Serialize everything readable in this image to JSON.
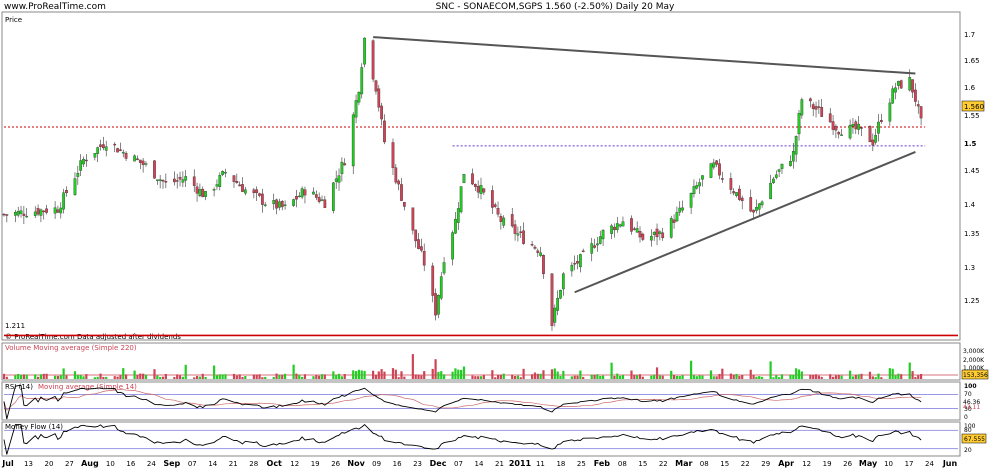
{
  "header": {
    "brand": "www.ProRealTime.com",
    "title": "SNC - SONAECOM,SGPS  1.560 (-2.50%)  Daily 20 May"
  },
  "main_panel": {
    "label": "Price",
    "footer_note": "© ProRealTime.com  Data adjusted after dividends",
    "low_label": "1.211",
    "last_price_label": "1.560",
    "y_ticks": [
      "1.7",
      "1.65",
      "1.6",
      "1.55",
      "1.5",
      "1.45",
      "1.4",
      "1.35",
      "1.3",
      "1.25"
    ]
  },
  "volume_panel": {
    "label": "Volume Moving average (Simple 220)",
    "ticks": [
      "3,000K",
      "2,000K",
      "1,000K"
    ],
    "last_label": "153,356"
  },
  "rsi_panel": {
    "label": "RSI (14)",
    "ma_label": "Moving average (Simple 14)",
    "ticks": [
      "100",
      "70",
      "30",
      "0"
    ],
    "value_labels": [
      "46.36",
      "43.11"
    ]
  },
  "mfi_panel": {
    "label": "Money Flow (14)",
    "ticks": [
      "100",
      "80",
      "20"
    ],
    "value_label": "67.555"
  },
  "x_axis": {
    "labels": [
      "Jul",
      "13",
      "20",
      "27",
      "Aug",
      "10",
      "16",
      "24",
      "Sep",
      "07",
      "14",
      "21",
      "28",
      "Oct",
      "12",
      "19",
      "26",
      "Nov",
      "09",
      "16",
      "23",
      "Dec",
      "07",
      "14",
      "21",
      "2011",
      "11",
      "18",
      "25",
      "Feb",
      "08",
      "15",
      "22",
      "Mar",
      "08",
      "15",
      "22",
      "29",
      "Apr",
      "12",
      "19",
      "26",
      "May",
      "10",
      "17",
      "24",
      "Jun"
    ]
  },
  "colors": {
    "up": "#22cc22",
    "down": "#cc4455",
    "support_line": "#cc0000",
    "resistance_dotted": "#6633cc",
    "trendline": "#555555",
    "indicator_line": "#000000",
    "indicator_ma": "#cc6666",
    "last_price_box": "#ffcc33"
  },
  "chart_data": {
    "type": "candlestick",
    "title": "SNC - SONAECOM,SGPS  1.560 (-2.50%)  Daily 20 May",
    "ylabel": "Price",
    "ylim": [
      1.21,
      1.74
    ],
    "last_price": 1.56,
    "change_pct": -2.5,
    "horizontal_levels": [
      {
        "value": 1.211,
        "style": "solid"
      },
      {
        "value": 1.554,
        "style": "dotted"
      },
      {
        "value": 1.523,
        "style": "dotted"
      }
    ],
    "trendlines": [
      {
        "from": {
          "date": "2010-11-08",
          "price": 1.702
        },
        "to": {
          "date": "2011-05-18",
          "price": 1.642
        }
      },
      {
        "from": {
          "date": "2011-01-18",
          "price": 1.282
        },
        "to": {
          "date": "2011-05-18",
          "price": 1.513
        }
      }
    ],
    "close_keypoints": [
      [
        "2010-07-01",
        1.41
      ],
      [
        "2010-07-20",
        1.42
      ],
      [
        "2010-07-29",
        1.5
      ],
      [
        "2010-08-06",
        1.53
      ],
      [
        "2010-08-13",
        1.51
      ],
      [
        "2010-08-20",
        1.49
      ],
      [
        "2010-08-27",
        1.46
      ],
      [
        "2010-09-03",
        1.47
      ],
      [
        "2010-09-10",
        1.44
      ],
      [
        "2010-09-17",
        1.48
      ],
      [
        "2010-09-24",
        1.45
      ],
      [
        "2010-10-01",
        1.43
      ],
      [
        "2010-10-08",
        1.42
      ],
      [
        "2010-10-15",
        1.45
      ],
      [
        "2010-10-22",
        1.43
      ],
      [
        "2010-10-29",
        1.5
      ],
      [
        "2010-11-03",
        1.62
      ],
      [
        "2010-11-05",
        1.7
      ],
      [
        "2010-11-09",
        1.62
      ],
      [
        "2010-11-12",
        1.53
      ],
      [
        "2010-11-18",
        1.44
      ],
      [
        "2010-11-22",
        1.38
      ],
      [
        "2010-11-26",
        1.33
      ],
      [
        "2010-11-30",
        1.25
      ],
      [
        "2010-12-03",
        1.34
      ],
      [
        "2010-12-07",
        1.4
      ],
      [
        "2010-12-10",
        1.48
      ],
      [
        "2010-12-16",
        1.45
      ],
      [
        "2010-12-23",
        1.4
      ],
      [
        "2010-12-31",
        1.37
      ],
      [
        "2011-01-06",
        1.35
      ],
      [
        "2011-01-10",
        1.23
      ],
      [
        "2011-01-14",
        1.31
      ],
      [
        "2011-01-21",
        1.34
      ],
      [
        "2011-01-28",
        1.38
      ],
      [
        "2011-02-04",
        1.4
      ],
      [
        "2011-02-11",
        1.37
      ],
      [
        "2011-02-18",
        1.38
      ],
      [
        "2011-02-25",
        1.42
      ],
      [
        "2011-03-04",
        1.47
      ],
      [
        "2011-03-08",
        1.49
      ],
      [
        "2011-03-15",
        1.45
      ],
      [
        "2011-03-22",
        1.41
      ],
      [
        "2011-03-29",
        1.47
      ],
      [
        "2011-04-05",
        1.51
      ],
      [
        "2011-04-08",
        1.6
      ],
      [
        "2011-04-14",
        1.58
      ],
      [
        "2011-04-21",
        1.55
      ],
      [
        "2011-04-28",
        1.55
      ],
      [
        "2011-05-03",
        1.53
      ],
      [
        "2011-05-06",
        1.57
      ],
      [
        "2011-05-11",
        1.62
      ],
      [
        "2011-05-16",
        1.63
      ],
      [
        "2011-05-18",
        1.6
      ],
      [
        "2011-05-20",
        1.56
      ]
    ]
  }
}
